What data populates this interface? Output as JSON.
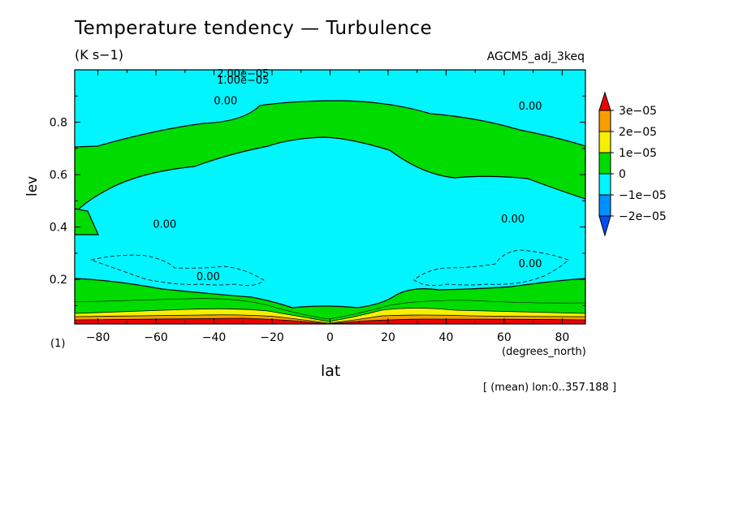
{
  "chart_data": {
    "type": "contour",
    "title": "Temperature tendency — Turbulence",
    "units": "(K s−1)",
    "run_name": "AGCM5_adj_3keq",
    "xlabel": "lat",
    "x_units": "(degrees_north)",
    "ylabel": "lev",
    "y_units": "(1)",
    "footer": "[ (mean) lon:0..357.188 ]",
    "xlim": [
      -88,
      88
    ],
    "ylim": [
      1.0,
      0.03
    ],
    "x_ticks": [
      {
        "value": -80,
        "label": "−80"
      },
      {
        "value": -60,
        "label": "−60"
      },
      {
        "value": -40,
        "label": "−40"
      },
      {
        "value": -20,
        "label": "−20"
      },
      {
        "value": 0,
        "label": "0"
      },
      {
        "value": 20,
        "label": "20"
      },
      {
        "value": 40,
        "label": "40"
      },
      {
        "value": 60,
        "label": "60"
      },
      {
        "value": 80,
        "label": "80"
      }
    ],
    "y_ticks": [
      {
        "value": 0.2,
        "label": "0.2"
      },
      {
        "value": 0.4,
        "label": "0.4"
      },
      {
        "value": 0.6,
        "label": "0.6"
      },
      {
        "value": 0.8,
        "label": "0.8"
      }
    ],
    "colorbar": {
      "labels": [
        "3e−05",
        "2e−05",
        "1e−05",
        "0",
        "−1e−05",
        "−2e−05"
      ],
      "levels": [
        {
          "color": "#f00000"
        },
        {
          "color": "#f5a000"
        },
        {
          "color": "#f5f000"
        },
        {
          "color": "#00dc00"
        },
        {
          "color": "#00f5ff"
        },
        {
          "color": "#0090ff"
        },
        {
          "color": "#0050f5"
        }
      ]
    },
    "contour_labels": [
      {
        "text": "0.00",
        "x": -42,
        "y": 0.21
      },
      {
        "text": "0.00",
        "x": -57,
        "y": 0.41
      },
      {
        "text": "0.00",
        "x": 69,
        "y": 0.26
      },
      {
        "text": "0.00",
        "x": 63,
        "y": 0.43
      },
      {
        "text": "0.00",
        "x": -36,
        "y": 0.88
      },
      {
        "text": "0.00",
        "x": 69,
        "y": 0.86
      },
      {
        "text": "1.00e−05",
        "x": -30,
        "y": 0.96
      },
      {
        "text": "2.00e−05",
        "x": -30,
        "y": 0.985
      }
    ]
  }
}
